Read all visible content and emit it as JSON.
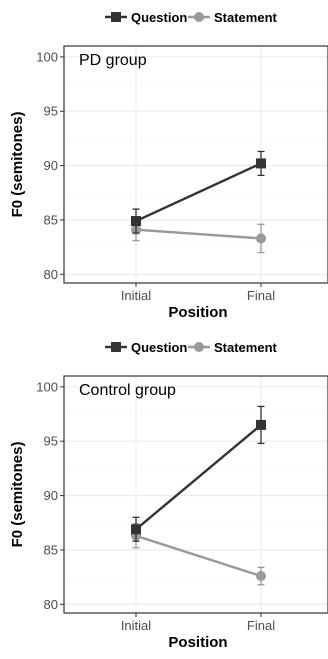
{
  "legend_entries": [
    "Question",
    "Statement"
  ],
  "colors": {
    "Question": "#333333",
    "Statement": "#999999",
    "grid": "#ebebeb",
    "border": "#333333"
  },
  "chart_data": [
    {
      "type": "line",
      "annotation": "PD group",
      "xlabel": "Position",
      "ylabel": "F0 (semitones)",
      "categories": [
        "Initial",
        "Final"
      ],
      "ylim": [
        79.2,
        101.0
      ],
      "yticks": [
        80,
        85,
        90,
        95,
        100
      ],
      "grid": true,
      "legend_position": "top",
      "series": [
        {
          "name": "Question",
          "marker": "square",
          "values": [
            84.9,
            90.2
          ],
          "error": [
            [
              83.8,
              86.0
            ],
            [
              89.1,
              91.3
            ]
          ]
        },
        {
          "name": "Statement",
          "marker": "circle",
          "values": [
            84.1,
            83.3
          ],
          "error": [
            [
              83.1,
              85.1
            ],
            [
              82.0,
              84.6
            ]
          ]
        }
      ]
    },
    {
      "type": "line",
      "annotation": "Control group",
      "xlabel": "Position",
      "ylabel": "F0 (semitones)",
      "categories": [
        "Initial",
        "Final"
      ],
      "ylim": [
        79.2,
        101.0
      ],
      "yticks": [
        80,
        85,
        90,
        95,
        100
      ],
      "grid": true,
      "legend_position": "top",
      "series": [
        {
          "name": "Question",
          "marker": "square",
          "values": [
            86.9,
            96.5
          ],
          "error": [
            [
              85.8,
              88.0
            ],
            [
              94.8,
              98.2
            ]
          ]
        },
        {
          "name": "Statement",
          "marker": "circle",
          "values": [
            86.3,
            82.6
          ],
          "error": [
            [
              85.2,
              87.4
            ],
            [
              81.8,
              83.4
            ]
          ]
        }
      ]
    }
  ]
}
